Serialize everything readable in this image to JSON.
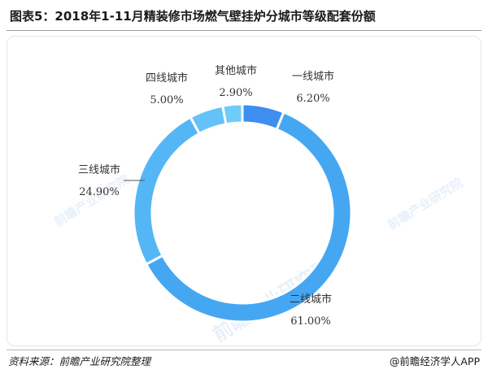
{
  "header": {
    "title": "图表5：2018年1-11月精装修市场燃气壁挂炉分城市等级配套份额"
  },
  "chart_data": {
    "type": "pie",
    "donut": true,
    "categories": [
      "一线城市",
      "二线城市",
      "三线城市",
      "四线城市",
      "其他城市"
    ],
    "values": [
      6.2,
      61.0,
      24.9,
      5.0,
      2.9
    ],
    "value_labels": [
      "6.20%",
      "61.00%",
      "24.90%",
      "5.00%",
      "2.90%"
    ],
    "colors": [
      "#3d8ef0",
      "#45a7f2",
      "#55b6f5",
      "#63c2f7",
      "#6fcbf8"
    ],
    "legend": "none"
  },
  "watermark": {
    "text": "前瞻产业研究院"
  },
  "footer": {
    "source": "资料来源：前瞻产业研究院整理",
    "brand": "@前瞻经济学人APP"
  }
}
